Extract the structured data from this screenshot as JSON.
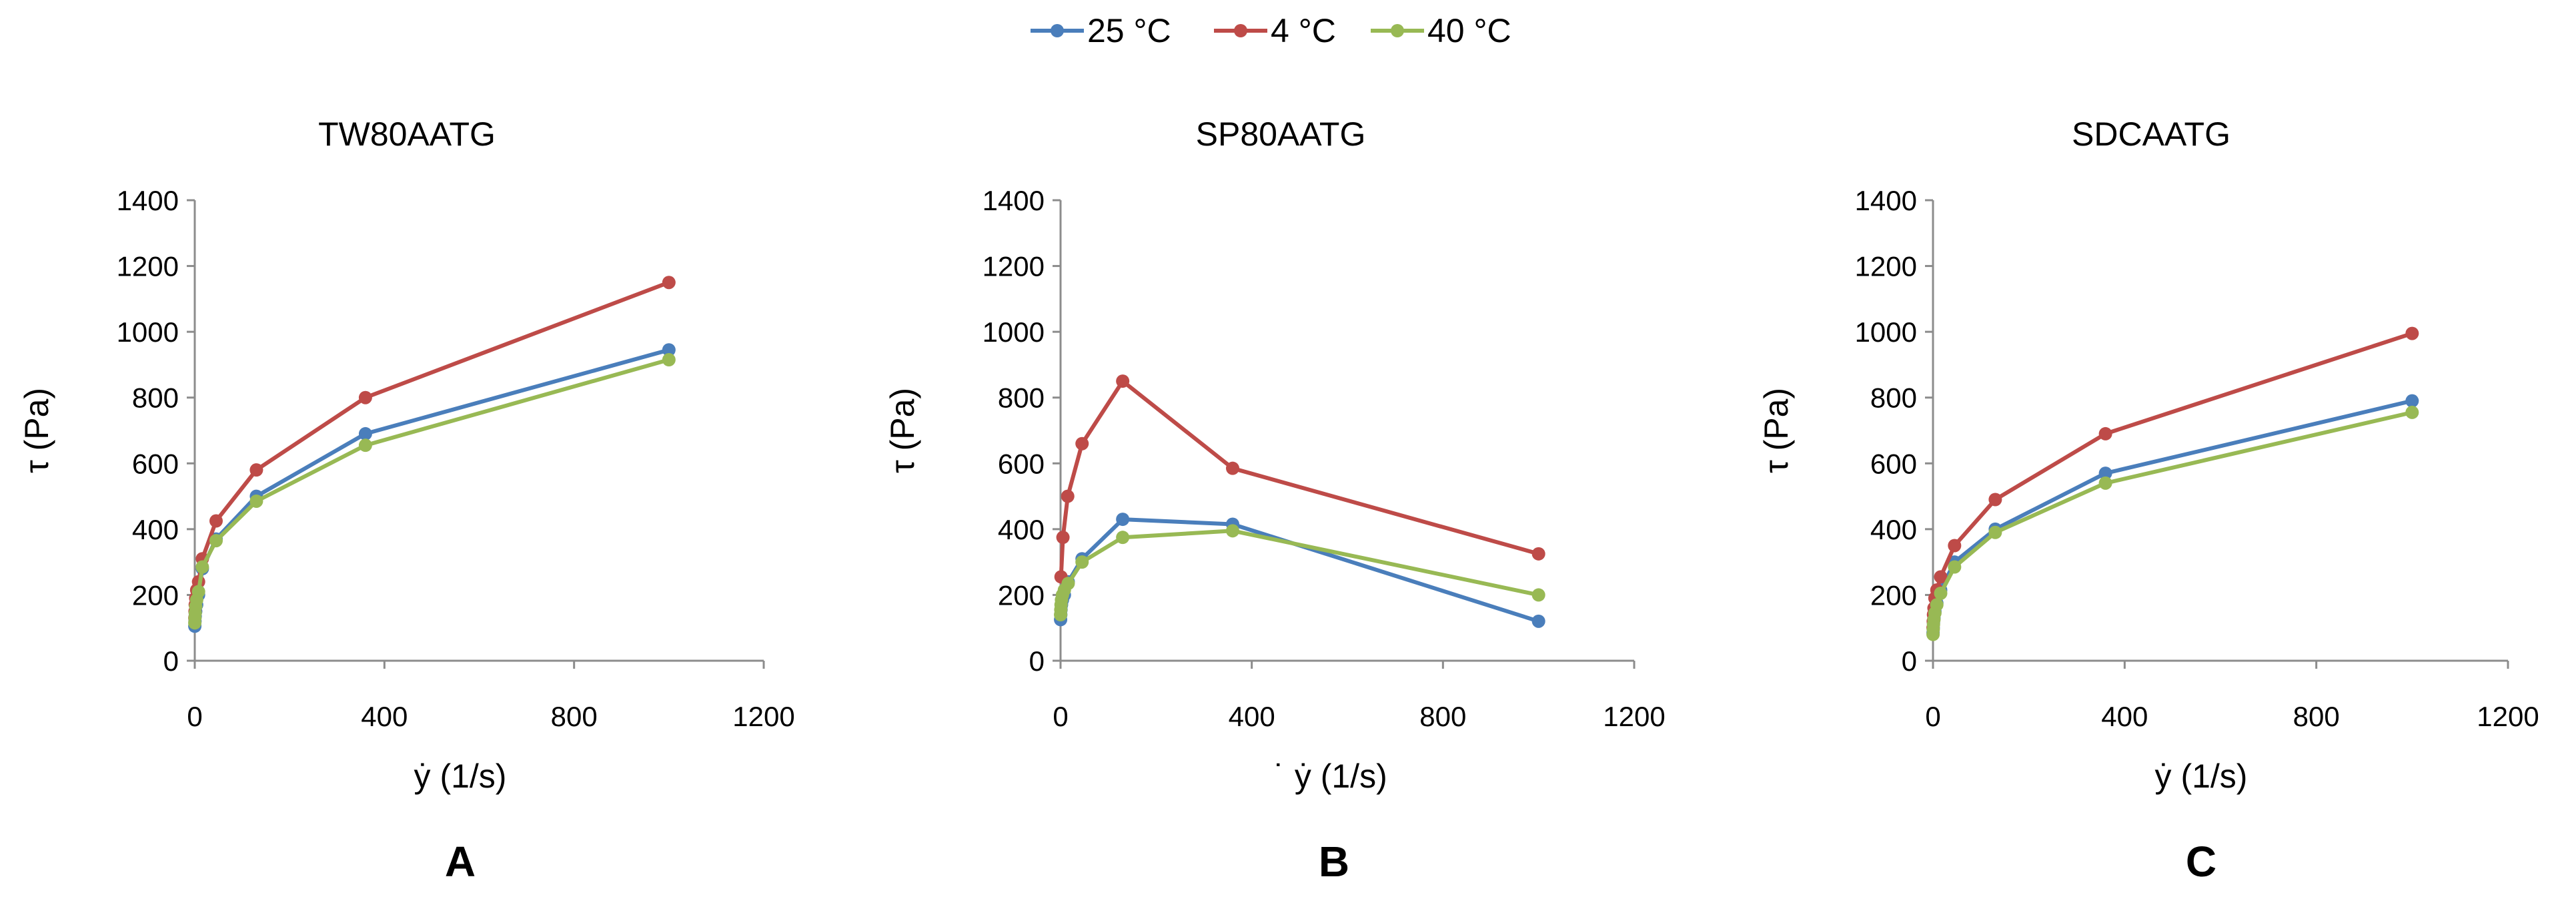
{
  "legend": [
    {
      "name": "25 °C",
      "color": "#4a7ebb"
    },
    {
      "name": "4 °C",
      "color": "#be4b48"
    },
    {
      "name": "40 °C",
      "color": "#98b954"
    }
  ],
  "chart_data": [
    {
      "type": "line",
      "title": "TW80AATG",
      "panel_label": "A",
      "xlabel": "ẏ (1/s)",
      "ylabel": "τ (Pa)",
      "xlim": [
        0,
        1200
      ],
      "ylim": [
        0,
        1400
      ],
      "xticks": [
        0,
        400,
        800,
        1200
      ],
      "yticks": [
        0,
        200,
        400,
        600,
        800,
        1000,
        1200,
        1400
      ],
      "series": [
        {
          "name": "25 °C",
          "color": "#4a7ebb",
          "x": [
            0.1,
            0.5,
            1,
            2,
            4,
            8,
            16,
            45,
            130,
            360,
            1000
          ],
          "y": [
            105,
            120,
            135,
            150,
            170,
            200,
            280,
            370,
            500,
            690,
            945
          ]
        },
        {
          "name": "4 °C",
          "color": "#be4b48",
          "x": [
            0.1,
            0.5,
            1,
            2,
            4,
            8,
            16,
            45,
            130,
            360,
            1000
          ],
          "y": [
            130,
            150,
            170,
            190,
            215,
            240,
            310,
            425,
            580,
            800,
            1150
          ]
        },
        {
          "name": "40 °C",
          "color": "#98b954",
          "x": [
            0.1,
            0.5,
            1,
            2,
            4,
            8,
            16,
            45,
            130,
            360,
            1000
          ],
          "y": [
            115,
            130,
            145,
            165,
            185,
            210,
            285,
            365,
            485,
            655,
            915
          ]
        }
      ]
    },
    {
      "type": "line",
      "title": "SP80AATG",
      "panel_label": "B",
      "xlabel": "˙ ẏ (1/s)",
      "ylabel": "τ (Pa)",
      "xlim": [
        0,
        1200
      ],
      "ylim": [
        0,
        1400
      ],
      "xticks": [
        0,
        400,
        800,
        1200
      ],
      "yticks": [
        0,
        200,
        400,
        600,
        800,
        1000,
        1200,
        1400
      ],
      "series": [
        {
          "name": "25 °C",
          "color": "#4a7ebb",
          "x": [
            0.1,
            0.5,
            1,
            2,
            4,
            8,
            16,
            45,
            130,
            360,
            1000
          ],
          "y": [
            125,
            140,
            155,
            170,
            185,
            200,
            240,
            310,
            430,
            415,
            120
          ]
        },
        {
          "name": "4 °C",
          "color": "#be4b48",
          "x": [
            1,
            5,
            15,
            45,
            130,
            360,
            1000
          ],
          "y": [
            255,
            375,
            500,
            660,
            850,
            585,
            325
          ]
        },
        {
          "name": "40 °C",
          "color": "#98b954",
          "x": [
            0.1,
            0.5,
            1,
            2,
            4,
            8,
            16,
            45,
            130,
            360,
            1000
          ],
          "y": [
            140,
            155,
            170,
            185,
            200,
            215,
            235,
            300,
            375,
            395,
            200
          ]
        }
      ]
    },
    {
      "type": "line",
      "title": "SDCAATG",
      "panel_label": "C",
      "xlabel": "ẏ (1/s)",
      "ylabel": "τ (Pa)",
      "xlim": [
        0,
        1200
      ],
      "ylim": [
        0,
        1400
      ],
      "xticks": [
        0,
        400,
        800,
        1200
      ],
      "yticks": [
        0,
        200,
        400,
        600,
        800,
        1000,
        1200,
        1400
      ],
      "series": [
        {
          "name": "25 °C",
          "color": "#4a7ebb",
          "x": [
            0.1,
            0.5,
            1,
            2,
            4,
            8,
            16,
            45,
            130,
            360,
            1000
          ],
          "y": [
            85,
            100,
            115,
            130,
            150,
            175,
            215,
            300,
            400,
            570,
            790
          ]
        },
        {
          "name": "4 °C",
          "color": "#be4b48",
          "x": [
            0.1,
            0.5,
            1,
            2,
            4,
            8,
            16,
            45,
            130,
            360,
            1000
          ],
          "y": [
            100,
            120,
            140,
            160,
            190,
            215,
            255,
            350,
            490,
            690,
            995
          ]
        },
        {
          "name": "40 °C",
          "color": "#98b954",
          "x": [
            0.1,
            0.5,
            1,
            2,
            4,
            8,
            16,
            45,
            130,
            360,
            1000
          ],
          "y": [
            80,
            95,
            110,
            125,
            145,
            170,
            205,
            285,
            390,
            540,
            755
          ]
        }
      ]
    }
  ]
}
